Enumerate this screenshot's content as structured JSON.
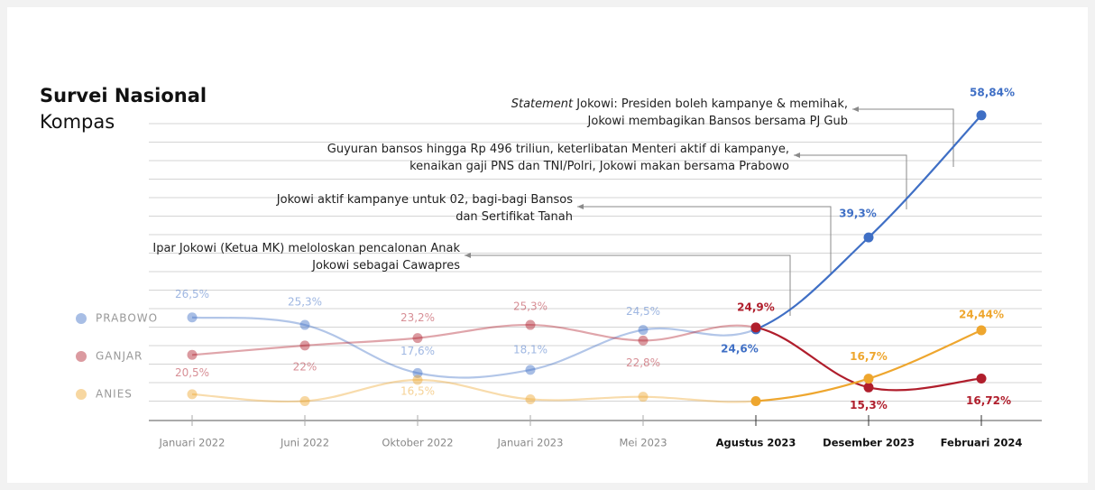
{
  "chart_data": {
    "type": "line",
    "title": "Survei Nasional",
    "subtitle": "Kompas",
    "categories": [
      "Januari 2022",
      "Juni 2022",
      "Oktober 2022",
      "Januari 2023",
      "Mei 2023",
      "Agustus 2023",
      "Desember 2023",
      "Februari 2024"
    ],
    "ylim": [
      10,
      63
    ],
    "series": [
      {
        "name": "PRABOWO",
        "color": "#3f6fc5",
        "values": [
          26.5,
          25.3,
          17.6,
          18.1,
          24.5,
          24.6,
          39.3,
          58.84
        ],
        "value_labels": [
          "26,5%",
          "25,3%",
          "17,6%",
          "18,1%",
          "24,5%",
          "24,6%",
          "39,3%",
          "58,84%"
        ]
      },
      {
        "name": "GANJAR",
        "color": "#b01e2c",
        "values": [
          20.5,
          22,
          23.2,
          25.3,
          22.8,
          24.9,
          15.3,
          16.72
        ],
        "value_labels": [
          "20,5%",
          "22%",
          "23,2%",
          "25,3%",
          "22,8%",
          "24,9%",
          "15,3%",
          "16,72%"
        ]
      },
      {
        "name": "ANIES",
        "color": "#eea62e",
        "values": [
          14.2,
          13.1,
          16.5,
          13.4,
          13.8,
          13.1,
          16.7,
          24.44
        ],
        "value_labels": [
          null,
          null,
          "16,5%",
          null,
          null,
          null,
          "16,7%",
          "24,44%"
        ]
      }
    ],
    "annotations": [
      {
        "lines": [
          [
            "Statement",
            " Jokowi: Presiden boleh kampanye & memihak,"
          ],
          [
            "Jokowi membagikan Bansos bersama  PJ Gub"
          ]
        ]
      },
      {
        "lines": [
          [
            "Guyuran bansos hingga Rp 496 triliun, keterlibatan Menteri aktif di kampanye,"
          ],
          [
            "kenaikan gaji PNS dan TNI/Polri, Jokowi makan bersama Prabowo"
          ]
        ]
      },
      {
        "lines": [
          [
            "Jokowi aktif kampanye untuk 02, bagi-bagi Bansos"
          ],
          [
            "dan Sertifikat Tanah"
          ]
        ]
      },
      {
        "lines": [
          [
            "Ipar Jokowi (Ketua MK) meloloskan pencalonan Anak"
          ],
          [
            "Jokowi sebagai Cawapres"
          ]
        ]
      }
    ]
  }
}
